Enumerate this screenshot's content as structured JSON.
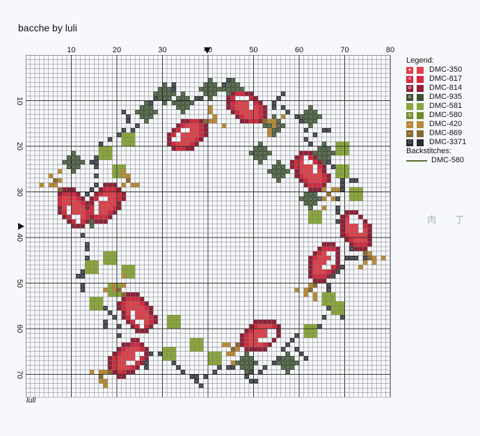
{
  "title": "bacche by luli",
  "signature": "luli",
  "axes": {
    "x_ticks": [
      "10",
      "20",
      "30",
      "40",
      "50",
      "60",
      "70",
      "80"
    ],
    "y_ticks": [
      "10",
      "20",
      "30",
      "40",
      "50",
      "60",
      "70"
    ],
    "columns": 80,
    "rows": 75
  },
  "legend": {
    "heading": "Legend:",
    "items": [
      {
        "label": "DMC-350",
        "color": "#e0404a",
        "symbol": "●"
      },
      {
        "label": "DMC-817",
        "color": "#d42a3e",
        "symbol": "✕"
      },
      {
        "label": "DMC-814",
        "color": "#8e2238",
        "symbol": "⊘"
      },
      {
        "label": "DMC-935",
        "color": "#3e5230",
        "symbol": "o"
      },
      {
        "label": "DMC-581",
        "color": "#8aa63a",
        "symbol": "·"
      },
      {
        "label": "DMC-580",
        "color": "#6f8a2a",
        "symbol": "◎"
      },
      {
        "label": "DMC-420",
        "color": "#b88a38",
        "symbol": "–"
      },
      {
        "label": "DMC-869",
        "color": "#8a6a34",
        "symbol": "–"
      },
      {
        "label": "DMC-3371",
        "color": "#2a2a30",
        "symbol": "□"
      }
    ],
    "backstitch_heading": "Backstitches:",
    "backstitch": {
      "label": "DMC-580",
      "color": "#556b2f"
    }
  },
  "watermark": [
    "肉",
    "丁"
  ]
}
